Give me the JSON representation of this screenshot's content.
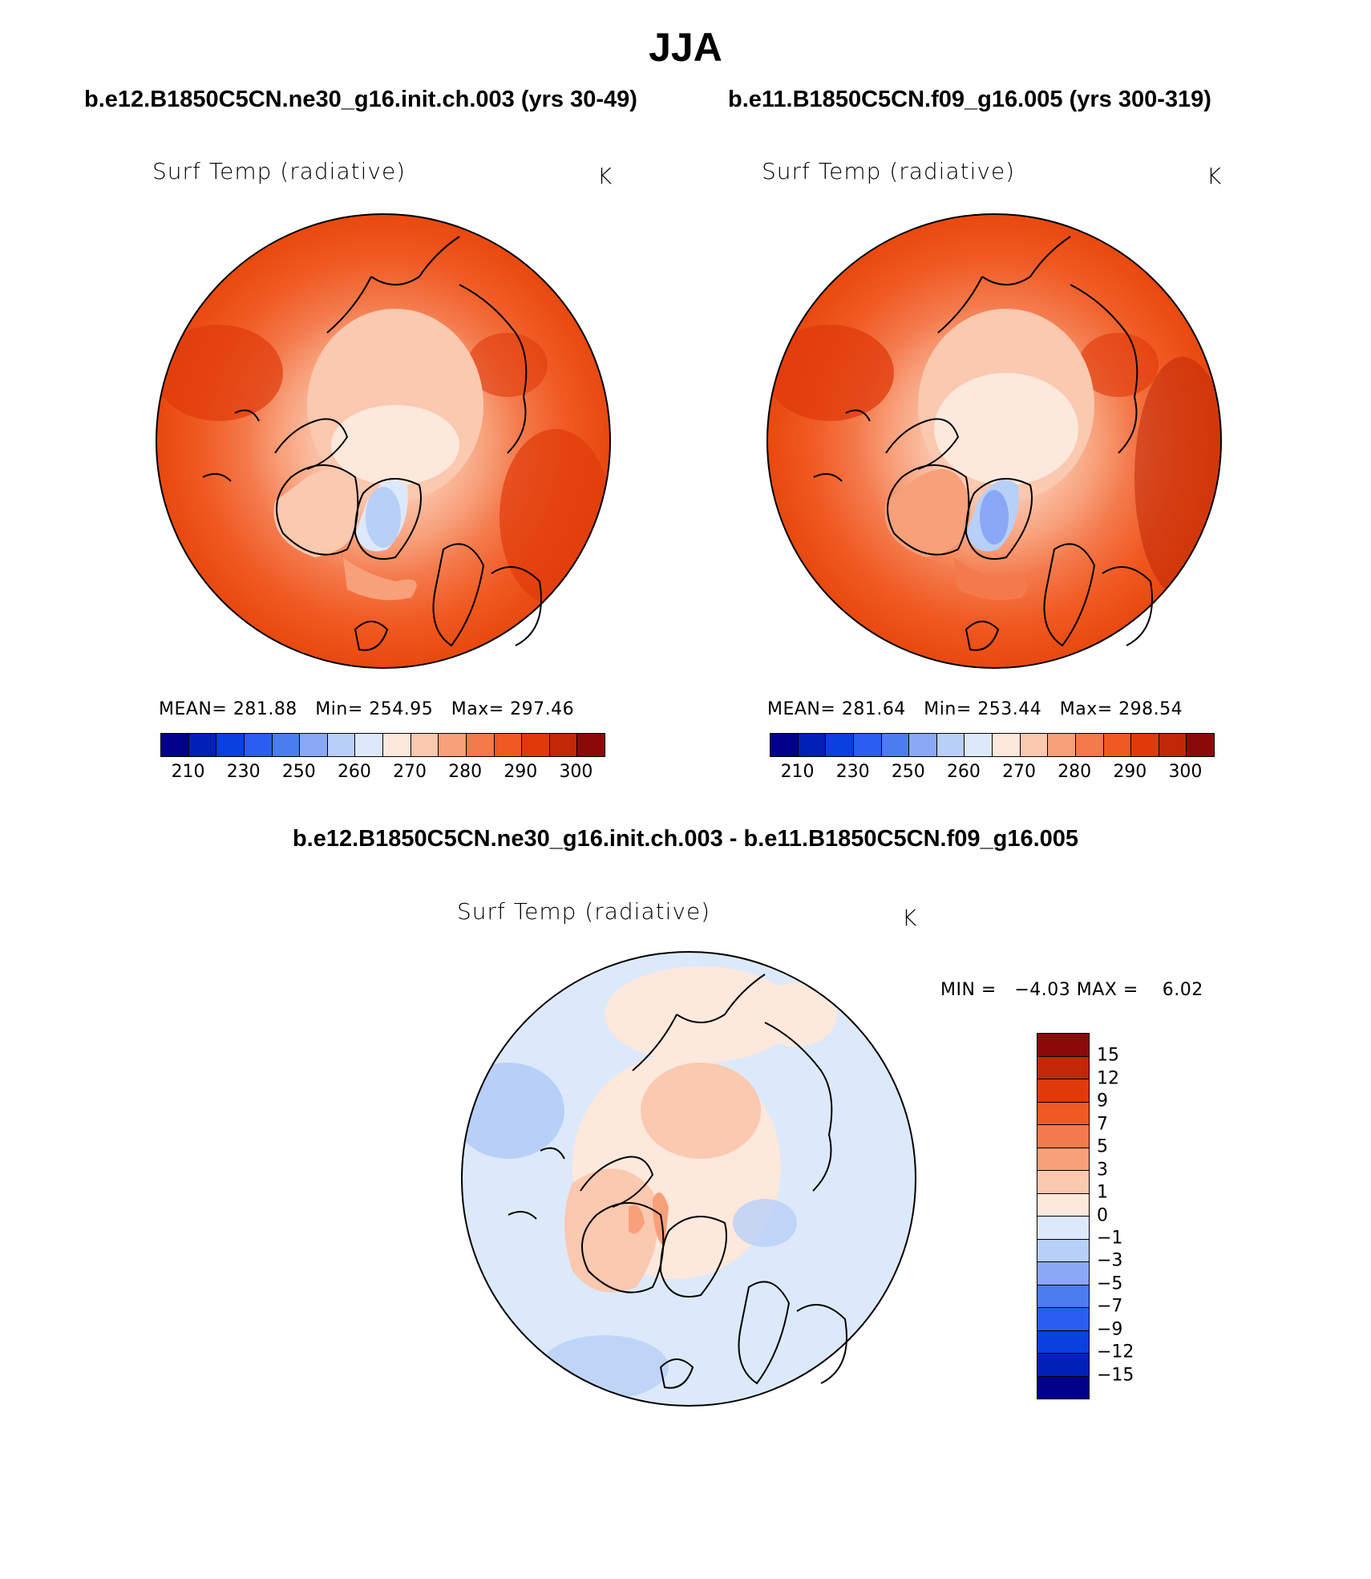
{
  "title": "JJA",
  "panels": [
    {
      "case_title": "b.e12.B1850C5CN.ne30_g16.init.ch.003 (yrs 30-49)",
      "variable": "Surf Temp (radiative)",
      "units": "K",
      "mean_label": "MEAN=",
      "mean": "281.88",
      "min_label": "Min=",
      "min": "254.95",
      "max_label": "Max=",
      "max": "297.46"
    },
    {
      "case_title": "b.e11.B1850C5CN.f09_g16.005 (yrs 300-319)",
      "variable": "Surf Temp (radiative)",
      "units": "K",
      "mean_label": "MEAN=",
      "mean": "281.64",
      "min_label": "Min=",
      "min": "253.44",
      "max_label": "Max=",
      "max": "298.54"
    }
  ],
  "colorbar": {
    "colors": [
      "#00008b",
      "#0020b8",
      "#0a3fe0",
      "#2a5ef0",
      "#4a7ef0",
      "#8aa8f5",
      "#b8cff8",
      "#dce9fa",
      "#fde8dc",
      "#fbc8b0",
      "#f8a07a",
      "#f47a4c",
      "#f05a22",
      "#e03a0a",
      "#c02808",
      "#8a0a0a"
    ],
    "tick_labels": [
      "210",
      "230",
      "250",
      "260",
      "270",
      "280",
      "290",
      "300"
    ]
  },
  "difference": {
    "title": "b.e12.B1850C5CN.ne30_g16.init.ch.003 - b.e11.B1850C5CN.f09_g16.005",
    "variable": "Surf Temp (radiative)",
    "units": "K",
    "min_label": "MIN =",
    "min": "−4.03",
    "max_label": "MAX =",
    "max": "6.02",
    "colors": [
      "#8a0a0a",
      "#c02808",
      "#e03a0a",
      "#f05a22",
      "#f47a4c",
      "#f8a07a",
      "#fbc8b0",
      "#fde8dc",
      "#dce9fa",
      "#b8cff8",
      "#8aa8f5",
      "#4a7ef0",
      "#2a5ef0",
      "#0a3fe0",
      "#0020b8",
      "#00008b"
    ],
    "tick_labels": [
      "15",
      "12",
      "9",
      "7",
      "5",
      "3",
      "1",
      "0",
      "−1",
      "−3",
      "−5",
      "−7",
      "−9",
      "−12",
      "−15"
    ]
  }
}
